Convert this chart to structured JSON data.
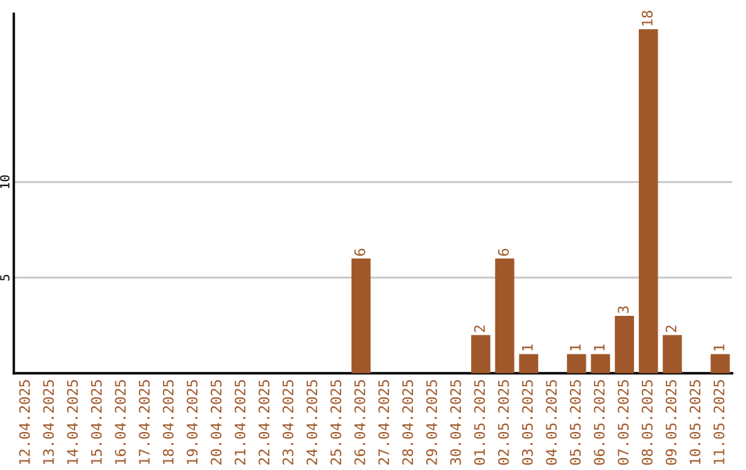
{
  "chart_data": {
    "type": "bar",
    "categories": [
      "12.04.2025",
      "13.04.2025",
      "14.04.2025",
      "15.04.2025",
      "16.04.2025",
      "17.04.2025",
      "18.04.2025",
      "19.04.2025",
      "20.04.2025",
      "21.04.2025",
      "22.04.2025",
      "23.04.2025",
      "24.04.2025",
      "25.04.2025",
      "26.04.2025",
      "27.04.2025",
      "28.04.2025",
      "29.04.2025",
      "30.04.2025",
      "01.05.2025",
      "02.05.2025",
      "03.05.2025",
      "04.05.2025",
      "05.05.2025",
      "06.05.2025",
      "07.05.2025",
      "08.05.2025",
      "09.05.2025",
      "10.05.2025",
      "11.05.2025"
    ],
    "values": [
      0,
      0,
      0,
      0,
      0,
      0,
      0,
      0,
      0,
      0,
      0,
      0,
      0,
      0,
      6,
      0,
      0,
      0,
      0,
      2,
      6,
      1,
      0,
      1,
      1,
      3,
      18,
      2,
      0,
      1
    ],
    "value_labels": [
      null,
      null,
      null,
      null,
      null,
      null,
      null,
      null,
      null,
      null,
      null,
      null,
      null,
      null,
      "6",
      null,
      null,
      null,
      null,
      "2",
      "6",
      "1",
      null,
      "1",
      "1",
      "3",
      "18",
      "2",
      null,
      "1"
    ],
    "color": "#a0582a",
    "ylim": [
      0,
      18.8
    ],
    "yticks": [
      5,
      10
    ],
    "grid": "y",
    "legend": false
  }
}
